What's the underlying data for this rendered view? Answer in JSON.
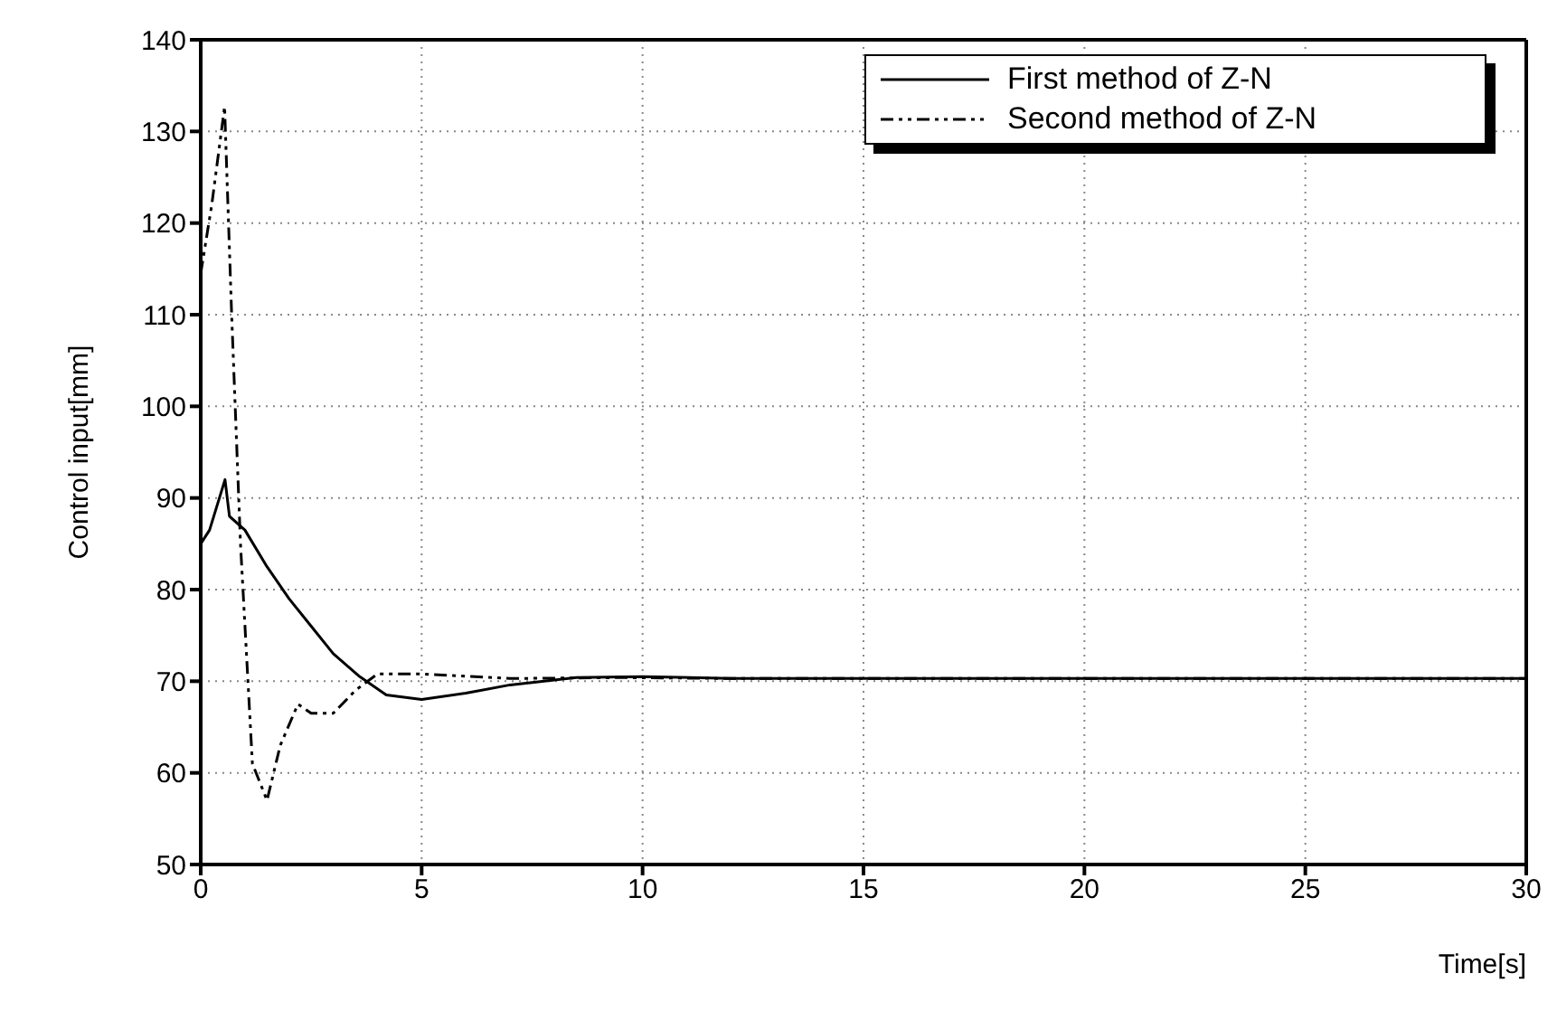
{
  "chart_data": {
    "type": "line",
    "xlabel": "Time[s]",
    "ylabel": "Control input[mm]",
    "xlim": [
      0,
      30
    ],
    "xticks": [
      0,
      5,
      10,
      15,
      20,
      25,
      30
    ],
    "ylim": [
      50,
      140
    ],
    "yticks": [
      50,
      60,
      70,
      80,
      90,
      100,
      110,
      120,
      130,
      140
    ],
    "grid": true,
    "legend": "top right",
    "marker": "none",
    "series": [
      {
        "name": "First method of Z-N",
        "color": "#000000",
        "line_style": "solid",
        "x": [
          0,
          0.2,
          0.55,
          0.65,
          1,
          1.5,
          2,
          2.5,
          3,
          3.6,
          4.2,
          5,
          6,
          7,
          8.5,
          10,
          12,
          15,
          20,
          25,
          30
        ],
        "values": [
          85,
          86.5,
          92,
          88,
          86.5,
          82.5,
          79,
          76,
          73,
          70.5,
          68.5,
          68,
          68.7,
          69.6,
          70.4,
          70.5,
          70.3,
          70.3,
          70.3,
          70.3,
          70.3
        ]
      },
      {
        "name": "Second method of Z-N",
        "color": "#000000",
        "line_style": "dashed",
        "x": [
          0,
          0.25,
          0.54,
          0.7,
          0.9,
          1.17,
          1.5,
          1.8,
          2.2,
          2.5,
          3,
          3.5,
          4,
          5,
          7,
          9.5,
          12,
          15,
          20,
          25,
          30
        ],
        "values": [
          114.5,
          122,
          132.7,
          110,
          85,
          61,
          57,
          63,
          67.5,
          66.5,
          66.5,
          69,
          70.8,
          70.8,
          70.3,
          70.4,
          70.3,
          70.3,
          70.3,
          70.3,
          70.3
        ]
      }
    ]
  }
}
